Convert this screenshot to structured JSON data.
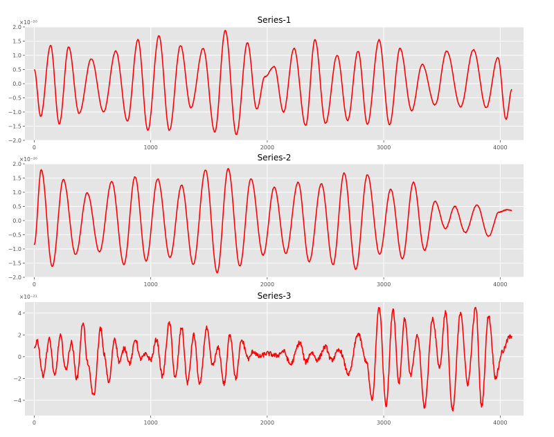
{
  "chart_data": [
    {
      "type": "line",
      "title": "Series-1",
      "xlabel": "",
      "ylabel": "",
      "offset_text": "×10⁻²⁰",
      "xlim": [
        -80,
        4200
      ],
      "ylim": [
        -2.0,
        2.0
      ],
      "x_ticks": [
        0,
        1000,
        2000,
        3000,
        4000
      ],
      "x_tick_labels": [
        "0",
        "1000",
        "2000",
        "3000",
        "4000"
      ],
      "y_ticks": [
        -2.0,
        -1.5,
        -1.0,
        -0.5,
        0.0,
        0.5,
        1.0,
        1.5,
        2.0
      ],
      "y_tick_labels": [
        "−2.0",
        "−1.5",
        "−1.0",
        "−0.5",
        "0.0",
        "0.5",
        "1.0",
        "1.5",
        "2.0"
      ],
      "grid": true,
      "color": "#ff0000",
      "series": [
        {
          "x": [
            0,
            55,
            140,
            215,
            295,
            385,
            490,
            595,
            700,
            800,
            890,
            975,
            1070,
            1160,
            1255,
            1345,
            1450,
            1550,
            1640,
            1735,
            1830,
            1910,
            1980,
            2060,
            2140,
            2230,
            2330,
            2410,
            2500,
            2600,
            2690,
            2780,
            2860,
            2960,
            3050,
            3140,
            3240,
            3330,
            3440,
            3540,
            3660,
            3770,
            3880,
            3980,
            4050,
            4100
          ],
          "values": [
            0.5,
            -1.15,
            1.35,
            -1.42,
            1.3,
            -1.05,
            0.88,
            -1.0,
            1.15,
            -1.32,
            1.55,
            -1.65,
            1.7,
            -1.65,
            1.35,
            -0.85,
            1.25,
            -1.7,
            1.88,
            -1.8,
            1.45,
            -0.9,
            0.25,
            0.6,
            -1.0,
            1.25,
            -1.48,
            1.55,
            -1.4,
            1.0,
            -1.3,
            1.15,
            -1.43,
            1.55,
            -1.45,
            1.25,
            -0.95,
            0.68,
            -0.75,
            1.15,
            -0.82,
            1.2,
            -0.85,
            0.92,
            -1.25,
            -0.2
          ]
        }
      ]
    },
    {
      "type": "line",
      "title": "Series-2",
      "xlabel": "",
      "ylabel": "",
      "offset_text": "×10⁻²⁰",
      "xlim": [
        -80,
        4200
      ],
      "ylim": [
        -2.0,
        2.0
      ],
      "x_ticks": [
        0,
        1000,
        2000,
        3000,
        4000
      ],
      "x_tick_labels": [
        "0",
        "1000",
        "2000",
        "3000",
        "4000"
      ],
      "y_ticks": [
        -2.0,
        -1.5,
        -1.0,
        -0.5,
        0.0,
        0.5,
        1.0,
        1.5,
        2.0
      ],
      "y_tick_labels": [
        "−2.0",
        "−1.5",
        "−1.0",
        "−0.5",
        "0.0",
        "0.5",
        "1.0",
        "1.5",
        "2.0"
      ],
      "grid": true,
      "color": "#ff0000",
      "series": [
        {
          "x": [
            0,
            60,
            155,
            250,
            355,
            455,
            560,
            665,
            770,
            865,
            960,
            1060,
            1165,
            1265,
            1365,
            1470,
            1570,
            1665,
            1765,
            1860,
            1965,
            2060,
            2160,
            2265,
            2360,
            2465,
            2565,
            2660,
            2760,
            2860,
            2965,
            3060,
            3160,
            3255,
            3350,
            3440,
            3530,
            3610,
            3700,
            3800,
            3900,
            3990,
            4060,
            4100
          ],
          "values": [
            -0.85,
            1.8,
            -1.62,
            1.45,
            -1.2,
            0.98,
            -1.1,
            1.38,
            -1.55,
            1.55,
            -1.42,
            1.47,
            -1.3,
            1.25,
            -1.55,
            1.78,
            -1.83,
            1.83,
            -1.6,
            1.48,
            -1.22,
            1.18,
            -1.15,
            1.35,
            -1.45,
            1.3,
            -1.55,
            1.68,
            -1.72,
            1.62,
            -1.18,
            1.1,
            -1.35,
            1.35,
            -1.05,
            0.68,
            -0.28,
            0.5,
            -0.42,
            0.55,
            -0.55,
            0.3,
            0.38,
            0.35
          ]
        }
      ]
    },
    {
      "type": "line",
      "title": "Series-3",
      "xlabel": "",
      "ylabel": "",
      "offset_text": "×10⁻²¹",
      "xlim": [
        -80,
        4200
      ],
      "ylim": [
        -5.4,
        5.0
      ],
      "x_ticks": [
        0,
        1000,
        2000,
        3000,
        4000
      ],
      "x_tick_labels": [
        "0",
        "1000",
        "2000",
        "3000",
        "4000"
      ],
      "y_ticks": [
        -4,
        -2,
        0,
        2,
        4
      ],
      "y_tick_labels": [
        "−4",
        "−2",
        "0",
        "2",
        "4"
      ],
      "grid": true,
      "color": "#ff0000",
      "series": [
        {
          "x": [
            0,
            25,
            75,
            130,
            175,
            225,
            270,
            320,
            365,
            420,
            455,
            510,
            570,
            600,
            640,
            690,
            730,
            775,
            820,
            870,
            910,
            960,
            1000,
            1050,
            1100,
            1160,
            1210,
            1265,
            1315,
            1370,
            1420,
            1480,
            1530,
            1580,
            1630,
            1680,
            1730,
            1780,
            1840,
            1880,
            1930,
            2000,
            2080,
            2140,
            2200,
            2280,
            2330,
            2380,
            2430,
            2500,
            2550,
            2620,
            2700,
            2780,
            2850,
            2900,
            2960,
            3020,
            3080,
            3130,
            3180,
            3230,
            3290,
            3350,
            3420,
            3480,
            3530,
            3590,
            3660,
            3720,
            3790,
            3840,
            3900,
            3960,
            4020,
            4080,
            4100
          ],
          "values": [
            0.8,
            1.5,
            -1.7,
            1.6,
            -1.8,
            1.9,
            -1.2,
            1.3,
            -2.0,
            3.2,
            -0.5,
            -3.6,
            2.6,
            0.2,
            -2.4,
            1.7,
            -0.5,
            0.8,
            -0.6,
            1.6,
            -0.2,
            0.2,
            -0.3,
            1.6,
            -1.8,
            3.1,
            -2.0,
            2.7,
            -2.4,
            2.0,
            -2.6,
            2.6,
            -0.8,
            0.8,
            -2.5,
            2.1,
            -2.0,
            1.5,
            -0.2,
            0.5,
            0.0,
            0.3,
            0.1,
            0.5,
            -0.7,
            1.3,
            -0.5,
            0.4,
            -0.3,
            0.9,
            -0.3,
            0.6,
            -1.6,
            2.1,
            -0.4,
            -4.0,
            4.6,
            -4.4,
            4.4,
            -2.4,
            3.5,
            -1.7,
            1.9,
            -4.6,
            3.5,
            -1.0,
            4.1,
            -5.0,
            4.1,
            -2.5,
            4.5,
            -4.6,
            3.8,
            -1.9,
            0.5,
            1.8,
            1.9
          ]
        }
      ]
    }
  ]
}
